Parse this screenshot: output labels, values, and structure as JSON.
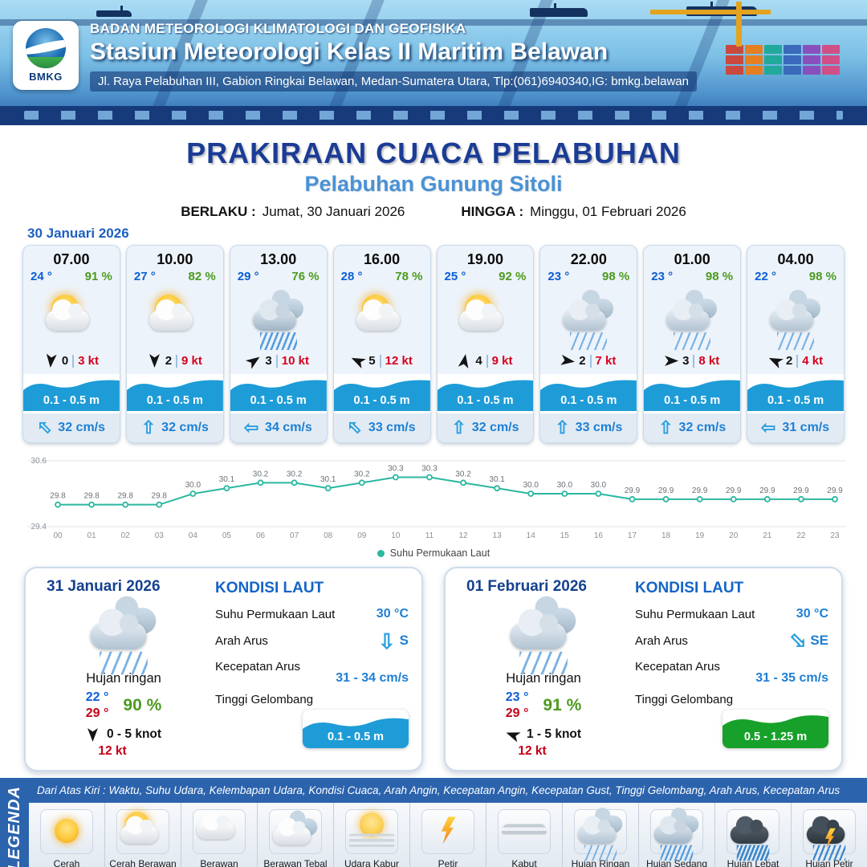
{
  "header": {
    "logo_text": "BMKG",
    "org": "BADAN METEOROLOGI KLIMATOLOGI DAN GEOFISIKA",
    "station": "Stasiun Meteorologi Kelas II Maritim Belawan",
    "address": "Jl. Raya Pelabuhan III, Gabion Ringkai Belawan, Medan-Sumatera Utara, Tlp:(061)6940340,IG: bmkg.belawan"
  },
  "title": {
    "main": "PRAKIRAAN CUACA PELABUHAN",
    "port": "Pelabuhan Gunung Sitoli",
    "berlaku_label": "BERLAKU :",
    "berlaku_value": "Jumat, 30 Januari 2026",
    "hingga_label": "HINGGA :",
    "hingga_value": "Minggu, 01 Februari 2026"
  },
  "forecast_date": "30 Januari 2026",
  "icons": {
    "current_arrow": "⇧",
    "wind_dart": "css-dart-shape"
  },
  "colors": {
    "accent_blue": "#2b63ad",
    "wave_blue": "#1e9cd7",
    "wave_green": "#17a12b",
    "line_teal": "#2bb7a0",
    "temp_blue": "#0b5ed7",
    "humidity_green": "#4c9a1f",
    "gust_red": "#d6001c"
  },
  "cards": [
    {
      "time": "07.00",
      "temp": "24 °",
      "humidity": "91 %",
      "icon": "cerah-berawan",
      "wind_dir_deg": 95,
      "wind_speed": "0",
      "gust": "3 kt",
      "wave": "0.1 - 0.5 m",
      "current_dir_deg": -45,
      "current": "32 cm/s"
    },
    {
      "time": "10.00",
      "temp": "27 °",
      "humidity": "82 %",
      "icon": "cerah-berawan",
      "wind_dir_deg": 90,
      "wind_speed": "2",
      "gust": "9 kt",
      "wave": "0.1 - 0.5 m",
      "current_dir_deg": 0,
      "current": "32 cm/s"
    },
    {
      "time": "13.00",
      "temp": "29 °",
      "humidity": "76 %",
      "icon": "hujan-sedang",
      "wind_dir_deg": -35,
      "wind_speed": "3",
      "gust": "10 kt",
      "wave": "0.1 - 0.5 m",
      "current_dir_deg": -90,
      "current": "34 cm/s"
    },
    {
      "time": "16.00",
      "temp": "28 °",
      "humidity": "78 %",
      "icon": "cerah-berawan",
      "wind_dir_deg": 205,
      "wind_speed": "5",
      "gust": "12 kt",
      "wave": "0.1 - 0.5 m",
      "current_dir_deg": -45,
      "current": "33 cm/s"
    },
    {
      "time": "19.00",
      "temp": "25 °",
      "humidity": "92 %",
      "icon": "cerah-berawan",
      "wind_dir_deg": -80,
      "wind_speed": "4",
      "gust": "9 kt",
      "wave": "0.1 - 0.5 m",
      "current_dir_deg": 0,
      "current": "32 cm/s"
    },
    {
      "time": "22.00",
      "temp": "23 °",
      "humidity": "98 %",
      "icon": "hujan-ringan",
      "wind_dir_deg": 8,
      "wind_speed": "2",
      "gust": "7 kt",
      "wave": "0.1 - 0.5 m",
      "current_dir_deg": 0,
      "current": "33 cm/s"
    },
    {
      "time": "01.00",
      "temp": "23 °",
      "humidity": "98 %",
      "icon": "hujan-ringan",
      "wind_dir_deg": 0,
      "wind_speed": "3",
      "gust": "8 kt",
      "wave": "0.1 - 0.5 m",
      "current_dir_deg": 0,
      "current": "32 cm/s"
    },
    {
      "time": "04.00",
      "temp": "22 °",
      "humidity": "98 %",
      "icon": "hujan-ringan",
      "wind_dir_deg": 205,
      "wind_speed": "2",
      "gust": "4 kt",
      "wave": "0.1 - 0.5 m",
      "current_dir_deg": -90,
      "current": "31 cm/s"
    }
  ],
  "chart_data": {
    "type": "line",
    "series_name": "Suhu Permukaan Laut",
    "x": [
      "00",
      "01",
      "02",
      "03",
      "04",
      "05",
      "06",
      "07",
      "08",
      "09",
      "10",
      "11",
      "12",
      "13",
      "14",
      "15",
      "16",
      "17",
      "18",
      "19",
      "20",
      "21",
      "22",
      "23"
    ],
    "values": [
      29.8,
      29.8,
      29.8,
      29.8,
      30.0,
      30.1,
      30.2,
      30.2,
      30.1,
      30.2,
      30.3,
      30.3,
      30.2,
      30.1,
      30.0,
      30.0,
      30.0,
      29.9,
      29.9,
      29.9,
      29.9,
      29.9,
      29.9,
      29.9
    ],
    "ylim": [
      29.4,
      30.6
    ],
    "line_color": "#2bb7a0",
    "grid": true,
    "legend_position": "bottom"
  },
  "daily": [
    {
      "date": "31 Januari 2026",
      "icon": "hujan-ringan",
      "condition": "Hujan ringan",
      "temp_min": "22 °",
      "temp_max": "29 °",
      "humidity": "90 %",
      "wind_dir_deg": 90,
      "wind_range": "0 - 5 knot",
      "gust": "12 kt",
      "sea": {
        "title": "KONDISI LAUT",
        "sst_label": "Suhu Permukaan Laut",
        "sst": "30 °C",
        "current_dir_label": "Arah Arus",
        "current_dir_deg": 180,
        "current_dir": "S",
        "current_speed_label": "Kecepatan Arus",
        "current_speed": "31 - 34 cm/s",
        "wave_label": "Tinggi Gelombang",
        "wave": "0.1 - 0.5 m",
        "wave_color": "#1e9cd7"
      }
    },
    {
      "date": "01 Februari 2026",
      "icon": "hujan-ringan",
      "condition": "Hujan ringan",
      "temp_min": "23 °",
      "temp_max": "29 °",
      "humidity": "91 %",
      "wind_dir_deg": 200,
      "wind_range": "1 - 5 knot",
      "gust": "12 kt",
      "sea": {
        "title": "KONDISI LAUT",
        "sst_label": "Suhu Permukaan Laut",
        "sst": "30 °C",
        "current_dir_label": "Arah Arus",
        "current_dir_deg": 135,
        "current_dir": "SE",
        "current_speed_label": "Kecepatan Arus",
        "current_speed": "31 - 35 cm/s",
        "wave_label": "Tinggi Gelombang",
        "wave": "0.5 - 1.25 m",
        "wave_color": "#17a12b"
      }
    }
  ],
  "legend": {
    "vertical_label": "LEGENDA",
    "description": "Dari Atas Kiri : Waktu, Suhu Udara, Kelembapan Udara, Kondisi Cuaca, Arah Angin, Kecepatan Angin, Kecepatan Gust, Tinggi Gelombang, Arah Arus, Kecepatan Arus",
    "items": [
      {
        "label": "Cerah",
        "icon": "cerah"
      },
      {
        "label": "Cerah Berawan",
        "icon": "cerah-berawan"
      },
      {
        "label": "Berawan",
        "icon": "berawan"
      },
      {
        "label": "Berawan Tebal",
        "icon": "berawan-tebal"
      },
      {
        "label": "Udara Kabur",
        "icon": "udara-kabur"
      },
      {
        "label": "Petir",
        "icon": "petir"
      },
      {
        "label": "Kabut",
        "icon": "kabut"
      },
      {
        "label": "Hujan Ringan",
        "icon": "hujan-ringan"
      },
      {
        "label": "Hujan Sedang",
        "icon": "hujan-sedang"
      },
      {
        "label": "Hujan Lebat",
        "icon": "hujan-lebat"
      },
      {
        "label": "Hujan Petir",
        "icon": "hujan-petir"
      }
    ]
  }
}
